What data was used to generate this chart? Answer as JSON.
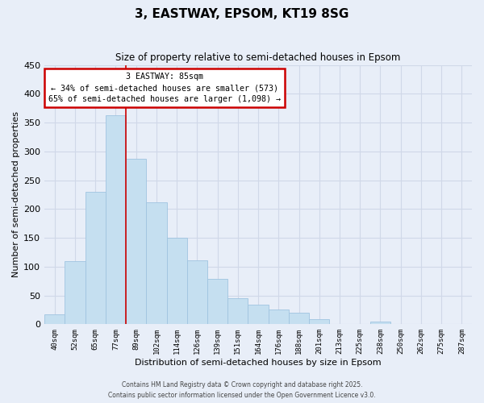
{
  "title": "3, EASTWAY, EPSOM, KT19 8SG",
  "subtitle": "Size of property relative to semi-detached houses in Epsom",
  "xlabel": "Distribution of semi-detached houses by size in Epsom",
  "ylabel": "Number of semi-detached properties",
  "bar_color": "#c5dff0",
  "bar_edge_color": "#a0c4e0",
  "background_color": "#e8eef8",
  "grid_color": "#d0d8e8",
  "categories": [
    "40sqm",
    "52sqm",
    "65sqm",
    "77sqm",
    "89sqm",
    "102sqm",
    "114sqm",
    "126sqm",
    "139sqm",
    "151sqm",
    "164sqm",
    "176sqm",
    "188sqm",
    "201sqm",
    "213sqm",
    "225sqm",
    "238sqm",
    "250sqm",
    "262sqm",
    "275sqm",
    "287sqm"
  ],
  "values": [
    17,
    109,
    230,
    363,
    287,
    212,
    150,
    111,
    79,
    45,
    34,
    25,
    20,
    9,
    1,
    0,
    5,
    0,
    0,
    0,
    1
  ],
  "property_label": "3 EASTWAY: 85sqm",
  "pct_smaller": 34,
  "pct_larger": 65,
  "count_smaller": 573,
  "count_larger": 1098,
  "annotation_box_color": "#ffffff",
  "annotation_box_edge_color": "#cc0000",
  "line_color": "#cc0000",
  "property_line_bar_index": 3,
  "ylim": [
    0,
    450
  ],
  "yticks": [
    0,
    50,
    100,
    150,
    200,
    250,
    300,
    350,
    400,
    450
  ],
  "footer_line1": "Contains HM Land Registry data © Crown copyright and database right 2025.",
  "footer_line2": "Contains public sector information licensed under the Open Government Licence v3.0."
}
